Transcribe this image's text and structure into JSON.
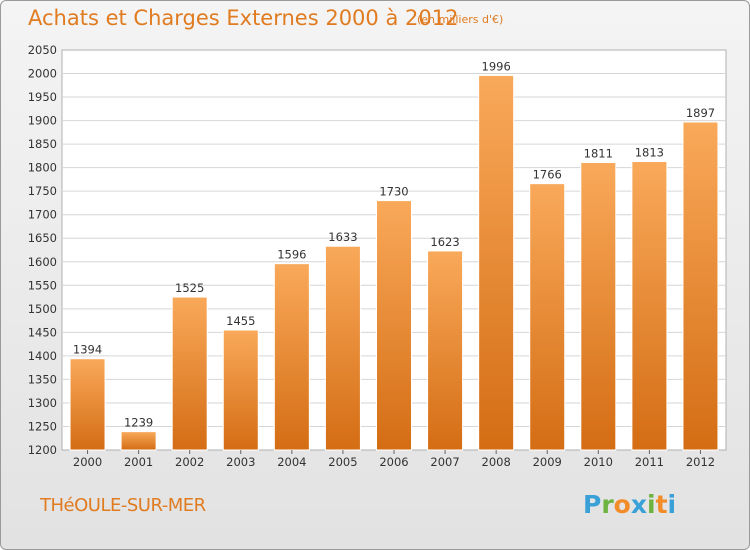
{
  "header": {
    "title": "Achats et Charges Externes 2000 à 2012",
    "subtitle": "(en milliers d'€)"
  },
  "footer": {
    "commune": "THéOULE-SUR-MER",
    "logo_letters": [
      {
        "ch": "P",
        "color": "#3aa0d8"
      },
      {
        "ch": "r",
        "color": "#6cb33f"
      },
      {
        "ch": "o",
        "color": "#f28c28"
      },
      {
        "ch": "x",
        "color": "#3aa0d8"
      },
      {
        "ch": "i",
        "color": "#6cb33f"
      },
      {
        "ch": "t",
        "color": "#f28c28"
      },
      {
        "ch": "i",
        "color": "#3aa0d8"
      }
    ]
  },
  "colors": {
    "bar_top": "#f9a95a",
    "bar_bottom": "#d46d14",
    "accent": "#e07b20"
  },
  "chart_data": {
    "type": "bar",
    "categories": [
      "2000",
      "2001",
      "2002",
      "2003",
      "2004",
      "2005",
      "2006",
      "2007",
      "2008",
      "2009",
      "2010",
      "2011",
      "2012"
    ],
    "values": [
      1394,
      1239,
      1525,
      1455,
      1596,
      1633,
      1730,
      1623,
      1996,
      1766,
      1811,
      1813,
      1897
    ],
    "ylim": [
      1200,
      2050
    ],
    "yticks": [
      1200,
      1250,
      1300,
      1350,
      1400,
      1450,
      1500,
      1550,
      1600,
      1650,
      1700,
      1750,
      1800,
      1850,
      1900,
      1950,
      2000,
      2050
    ],
    "grid": true,
    "data_labels": true
  }
}
